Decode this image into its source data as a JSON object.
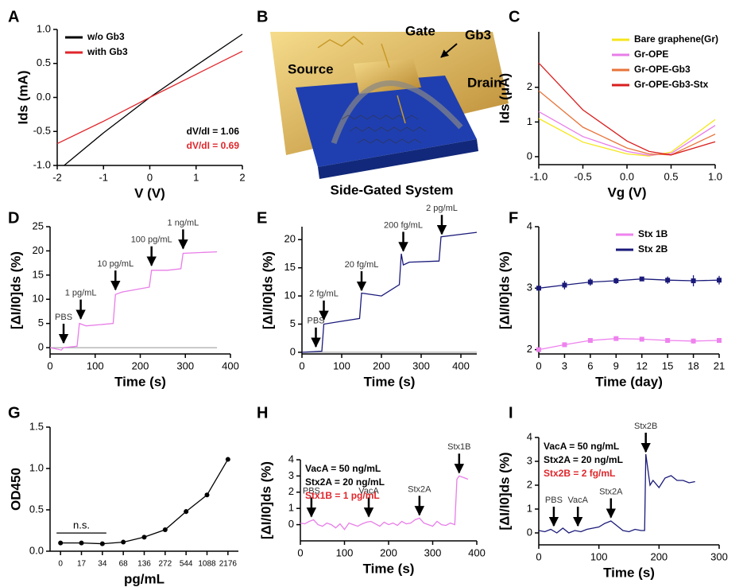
{
  "chart_data": [
    {
      "type": "line",
      "panel": "A",
      "xlabel": "V (V)",
      "ylabel": "Ids (mA)",
      "xlim": [
        -2,
        2
      ],
      "ylim": [
        -1,
        1
      ],
      "xticks": [
        -2,
        -1,
        0,
        1,
        2
      ],
      "yticks": [
        {
          "value": -1,
          "label": "-1.0"
        },
        {
          "value": -0.5,
          "label": "-0.5"
        },
        {
          "value": 0,
          "label": "0.0"
        },
        {
          "value": 0.5,
          "label": "0.5"
        },
        {
          "value": 1,
          "label": "1.0"
        }
      ],
      "legend": "upper left",
      "series": [
        {
          "name": "w/o Gb3",
          "color": "#000000",
          "x": [
            -1.85,
            -1,
            0,
            1,
            2
          ],
          "values": [
            -1,
            -0.52,
            0,
            0.47,
            0.93
          ]
        },
        {
          "name": "with Gb3",
          "color": "#e0262b",
          "x": [
            -2,
            -1,
            0,
            1,
            2
          ],
          "values": [
            -0.68,
            -0.35,
            0,
            0.34,
            0.68
          ]
        }
      ],
      "notes_corner": "lower right",
      "notes": [
        {
          "text": "dV/dI = 1.06",
          "color": "#000000"
        },
        {
          "text": "dV/dI = 0.69",
          "color": "#e0262b"
        }
      ]
    },
    {
      "type": "line",
      "panel": "C",
      "xlabel": "Vg (V)",
      "ylabel": "Ids (μA)",
      "xlim": [
        -1,
        1
      ],
      "ylim": [
        -0.23,
        3.6
      ],
      "xticks": [
        {
          "value": -1,
          "label": "-1.0"
        },
        {
          "value": -0.5,
          "label": "-0.5"
        },
        {
          "value": 0,
          "label": "0.0"
        },
        {
          "value": 0.5,
          "label": "0.5"
        },
        {
          "value": 1,
          "label": "1.0"
        }
      ],
      "yticks": [
        0,
        1,
        2
      ],
      "legend": "upper right",
      "series": [
        {
          "name": "Bare graphene(Gr)",
          "color": "#f5e61c",
          "x": [
            -1,
            -0.5,
            0,
            0.25,
            0.5,
            1
          ],
          "values": [
            1.1,
            0.42,
            0.08,
            0.02,
            0.13,
            1.07
          ]
        },
        {
          "name": "Gr-OPE",
          "color": "#e87de8",
          "x": [
            -1,
            -0.5,
            0,
            0.25,
            0.5,
            1
          ],
          "values": [
            1.3,
            0.58,
            0.15,
            0.04,
            0.09,
            0.9
          ]
        },
        {
          "name": "Gr-OPE-Gb3",
          "color": "#e8743b",
          "x": [
            -1,
            -0.5,
            0,
            0.25,
            0.5,
            1
          ],
          "values": [
            1.9,
            0.85,
            0.25,
            0.08,
            0.05,
            0.65
          ]
        },
        {
          "name": "Gr-OPE-Gb3-Stx",
          "color": "#d91e1e",
          "x": [
            -1,
            -0.5,
            0,
            0.25,
            0.5,
            1
          ],
          "values": [
            2.7,
            1.35,
            0.45,
            0.15,
            0.05,
            0.43
          ]
        }
      ]
    },
    {
      "type": "line",
      "panel": "D",
      "xlabel": "Time (s)",
      "ylabel": "[ΔI/I0]ds (%)",
      "xlim": [
        0,
        400
      ],
      "ylim": [
        -1.3,
        25
      ],
      "xticks": [
        0,
        100,
        200,
        300,
        400
      ],
      "yticks": [
        0,
        5,
        10,
        15,
        20,
        25
      ],
      "series": [
        {
          "color": "#aaaaaa",
          "x": [
            0,
            370
          ],
          "values": [
            0,
            0
          ]
        },
        {
          "color": "#e87de8",
          "x": [
            0,
            25,
            30,
            60,
            65,
            80,
            140,
            145,
            160,
            220,
            225,
            260,
            290,
            295,
            370
          ],
          "values": [
            0,
            -0.5,
            0,
            0.3,
            5,
            4.5,
            5,
            11,
            11.5,
            12.5,
            16,
            16,
            16.3,
            19.5,
            19.8
          ]
        }
      ],
      "annotations": [
        {
          "text": "PBS",
          "x": 30,
          "y": 1
        },
        {
          "text": "1 pg/mL",
          "x": 68,
          "y": 6
        },
        {
          "text": "10 pg/mL",
          "x": 145,
          "y": 12
        },
        {
          "text": "100 pg/mL",
          "x": 225,
          "y": 17
        },
        {
          "text": "1 ng/mL",
          "x": 295,
          "y": 20.5
        }
      ]
    },
    {
      "type": "line",
      "panel": "E",
      "xlabel": "Time (s)",
      "ylabel": "[ΔI/I0]ds (%)",
      "xlim": [
        0,
        440
      ],
      "ylim": [
        -0.3,
        22.3
      ],
      "xticks": [
        0,
        100,
        200,
        300,
        400
      ],
      "yticks": [
        0,
        5,
        10,
        15,
        20
      ],
      "series": [
        {
          "color": "#aaaaaa",
          "x": [
            0,
            440
          ],
          "values": [
            0,
            0
          ]
        },
        {
          "color": "#1a1a7a",
          "x": [
            0,
            50,
            55,
            100,
            145,
            150,
            200,
            245,
            250,
            255,
            270,
            345,
            350,
            440
          ],
          "values": [
            0,
            0.2,
            5,
            5.5,
            6,
            10.5,
            10,
            12,
            17.5,
            15.5,
            16,
            16.2,
            20.5,
            21.3
          ]
        }
      ],
      "annotations": [
        {
          "text": "PBS",
          "x": 35,
          "y": 1
        },
        {
          "text": "2 fg/mL",
          "x": 55,
          "y": 5.8
        },
        {
          "text": "20 fg/mL",
          "x": 150,
          "y": 11
        },
        {
          "text": "200 fg/mL",
          "x": 255,
          "y": 18
        },
        {
          "text": "2 pg/mL",
          "x": 352,
          "y": 21
        }
      ]
    },
    {
      "type": "line",
      "panel": "F",
      "xlabel": "Time (day)",
      "ylabel": "[ΔI/I0]ds (%)",
      "xlim": [
        0,
        21
      ],
      "ylim": [
        1.93,
        4
      ],
      "xticks": [
        0,
        3,
        6,
        9,
        12,
        15,
        18,
        21
      ],
      "yticks": [
        2,
        3,
        4
      ],
      "legend": "upper right",
      "markers": "square",
      "series": [
        {
          "name": "Stx 1B",
          "color": "#ee82ee",
          "x": [
            0,
            3,
            6,
            9,
            12,
            15,
            18,
            21
          ],
          "values": [
            2.0,
            2.08,
            2.15,
            2.18,
            2.17,
            2.15,
            2.14,
            2.15
          ],
          "errors": [
            0.02,
            0.03,
            0.03,
            0.03,
            0.02,
            0.04,
            0.04,
            0.04
          ]
        },
        {
          "name": "Stx 2B",
          "color": "#1a1a7a",
          "x": [
            0,
            3,
            6,
            9,
            12,
            15,
            18,
            21
          ],
          "values": [
            3.0,
            3.05,
            3.1,
            3.12,
            3.15,
            3.13,
            3.12,
            3.13
          ],
          "errors": [
            0.03,
            0.07,
            0.06,
            0.05,
            0.03,
            0.06,
            0.09,
            0.07
          ]
        }
      ]
    },
    {
      "type": "line",
      "panel": "G",
      "xlabel": "pg/mL",
      "ylabel": "OD450",
      "categories": [
        "0",
        "17",
        "34",
        "68",
        "136",
        "272",
        "544",
        "1088",
        "2176"
      ],
      "ylim": [
        0,
        1.5
      ],
      "yticks": [
        {
          "value": 0,
          "label": "0.0"
        },
        {
          "value": 0.5,
          "label": "0.5"
        },
        {
          "value": 1,
          "label": "1.0"
        },
        {
          "value": 1.5,
          "label": "1.5"
        }
      ],
      "markers": "circle",
      "series": [
        {
          "color": "#000000",
          "values": [
            0.1,
            0.1,
            0.09,
            0.11,
            0.17,
            0.26,
            0.48,
            0.68,
            1.11
          ],
          "errors": [
            0.01,
            0.01,
            0.01,
            0.01,
            0.01,
            0.02,
            0.03,
            0.02,
            0.02
          ]
        }
      ],
      "bracket": {
        "text": "n.s.",
        "y": 0.22,
        "from": "0",
        "to": "34"
      }
    },
    {
      "type": "line",
      "panel": "H",
      "xlabel": "Time (s)",
      "ylabel": "[ΔI/I0]ds (%)",
      "xlim": [
        0,
        400
      ],
      "ylim": [
        -1,
        4
      ],
      "xticks": [
        0,
        100,
        200,
        300,
        400
      ],
      "yticks": [
        0,
        1,
        2,
        3,
        4
      ],
      "series": [
        {
          "color": "#e87de8",
          "x": [
            0,
            10,
            20,
            30,
            40,
            50,
            60,
            70,
            80,
            90,
            100,
            110,
            120,
            130,
            140,
            150,
            160,
            170,
            180,
            190,
            200,
            210,
            220,
            230,
            240,
            250,
            260,
            270,
            280,
            290,
            300,
            310,
            320,
            330,
            340,
            350,
            355,
            360,
            370,
            380
          ],
          "values": [
            0.1,
            0.05,
            0.2,
            0.3,
            0,
            -0.1,
            0.1,
            0,
            -0.2,
            0.05,
            -0.3,
            0.1,
            0,
            -0.1,
            0.05,
            0.15,
            0.2,
            0.05,
            -0.1,
            0.15,
            0,
            0.1,
            -0.05,
            0.2,
            0.05,
            0.1,
            0.3,
            0.4,
            0.1,
            0,
            -0.1,
            0.2,
            0,
            -0.05,
            0.1,
            0,
            2.8,
            3.0,
            2.9,
            2.8
          ]
        }
      ],
      "annotations": [
        {
          "text": "PBS",
          "x": 25,
          "y": 0.5
        },
        {
          "text": "VacA",
          "x": 155,
          "y": 0.5
        },
        {
          "text": "Stx2A",
          "x": 270,
          "y": 0.6
        },
        {
          "text": "Stx1B",
          "x": 360,
          "y": 3.2
        }
      ],
      "notes_corner": "upper left",
      "notes": [
        {
          "text": "VacA = 50 ng/mL",
          "color": "#000000"
        },
        {
          "text": "Stx2A = 20 ng/mL",
          "color": "#000000"
        },
        {
          "text": "Stx1B = 1 pg/mL",
          "color": "#e0262b"
        }
      ]
    },
    {
      "type": "line",
      "panel": "I",
      "xlabel": "Time (s)",
      "ylabel": "[ΔI/I0]ds (%)",
      "xlim": [
        0,
        300
      ],
      "ylim": [
        -0.5,
        4
      ],
      "xticks": [
        0,
        100,
        200,
        300
      ],
      "yticks": [
        0,
        1,
        2,
        3,
        4
      ],
      "series": [
        {
          "color": "#1a1a7a",
          "x": [
            0,
            10,
            20,
            30,
            40,
            50,
            60,
            70,
            80,
            90,
            100,
            110,
            120,
            130,
            140,
            150,
            160,
            170,
            176,
            178,
            185,
            190,
            200,
            210,
            220,
            230,
            240,
            250,
            260
          ],
          "values": [
            0.1,
            0.05,
            0.15,
            0,
            0.2,
            0,
            0.1,
            0.05,
            0.15,
            0.2,
            0.25,
            0.4,
            0.5,
            0.3,
            0.1,
            0.05,
            0.15,
            0.1,
            0.1,
            3.3,
            2.0,
            2.2,
            1.9,
            2.3,
            2.4,
            2.2,
            2.2,
            2.1,
            2.15
          ]
        }
      ],
      "annotations": [
        {
          "text": "PBS",
          "x": 25,
          "y": 0.3
        },
        {
          "text": "VacA",
          "x": 65,
          "y": 0.3
        },
        {
          "text": "Stx2A",
          "x": 120,
          "y": 0.65
        },
        {
          "text": "Stx2B",
          "x": 178,
          "y": 3.4
        }
      ],
      "notes_corner": "upper left",
      "notes": [
        {
          "text": "VacA = 50 ng/mL",
          "color": "#000000"
        },
        {
          "text": "Stx2A = 20 ng/mL",
          "color": "#000000"
        },
        {
          "text": "Stx2B = 2 fg/mL",
          "color": "#e0262b"
        }
      ]
    }
  ],
  "illustration": {
    "panel": "B",
    "labels": [
      "Gate",
      "Gb3",
      "Source",
      "Drain"
    ],
    "caption": "Side-Gated System"
  }
}
